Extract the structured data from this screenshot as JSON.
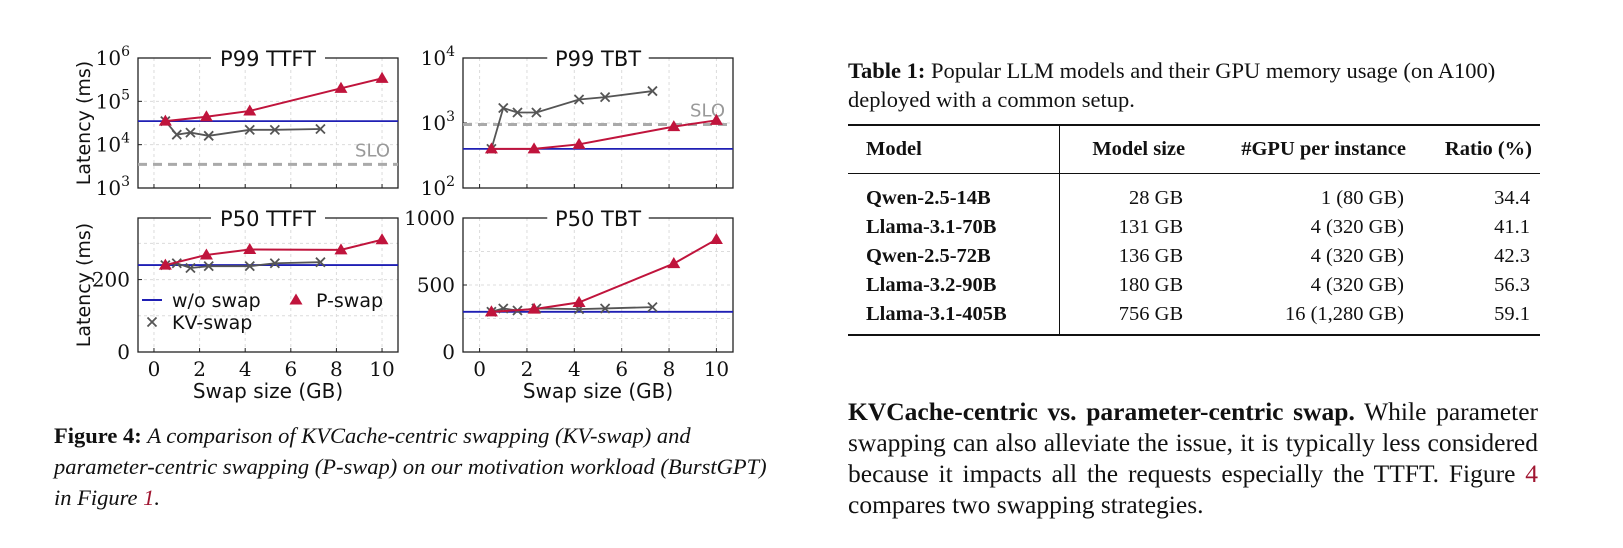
{
  "figure": {
    "chart_data": [
      {
        "type": "line",
        "title": "P99 TTFT",
        "ylabel": "Latency (ms)",
        "yscale": "log",
        "ylim": [
          1000,
          1000000
        ],
        "yticks": [
          1000,
          10000,
          100000,
          1000000
        ],
        "ytick_labels": [
          [
            "10",
            "3"
          ],
          [
            "10",
            "4"
          ],
          [
            "10",
            "5"
          ],
          [
            "10",
            "6"
          ]
        ],
        "xlim": [
          -0.7,
          10.7
        ],
        "xticks": [
          0,
          2,
          4,
          6,
          8,
          10
        ],
        "hlines": [
          {
            "name": "w/o swap",
            "y": 35000,
            "style": "solid",
            "color": "#1f1fb4"
          },
          {
            "name": "SLO",
            "y": 3500,
            "style": "dashed",
            "color": "#aaaaaa",
            "label": "SLO"
          }
        ],
        "series": [
          {
            "name": "KV-swap",
            "marker": "x",
            "color": "#555555",
            "x": [
              0.5,
              1.0,
              1.6,
              2.4,
              4.2,
              5.3,
              7.3
            ],
            "y": [
              35000,
              17000,
              19000,
              16000,
              22000,
              22000,
              23000
            ]
          },
          {
            "name": "P-swap",
            "marker": "triangle",
            "color": "#c0143c",
            "x": [
              0.5,
              2.3,
              4.2,
              8.2,
              10.0
            ],
            "y": [
              35000,
              44000,
              60000,
              200000,
              340000
            ]
          }
        ]
      },
      {
        "type": "line",
        "title": "P99 TBT",
        "ylabel": "",
        "yscale": "log",
        "ylim": [
          100,
          10000
        ],
        "yticks": [
          100,
          1000,
          10000
        ],
        "ytick_labels": [
          [
            "10",
            "2"
          ],
          [
            "10",
            "3"
          ],
          [
            "10",
            "4"
          ]
        ],
        "xlim": [
          -0.7,
          10.7
        ],
        "xticks": [
          0,
          2,
          4,
          6,
          8,
          10
        ],
        "hlines": [
          {
            "name": "w/o swap",
            "y": 400,
            "style": "solid",
            "color": "#1f1fb4"
          },
          {
            "name": "SLO",
            "y": 950,
            "style": "dashed",
            "color": "#aaaaaa",
            "label": "SLO"
          }
        ],
        "series": [
          {
            "name": "KV-swap",
            "marker": "x",
            "color": "#555555",
            "x": [
              0.5,
              1.0,
              1.6,
              2.4,
              4.2,
              5.3,
              7.3
            ],
            "y": [
              400,
              1700,
              1450,
              1450,
              2300,
              2500,
              3100
            ]
          },
          {
            "name": "P-swap",
            "marker": "triangle",
            "color": "#c0143c",
            "x": [
              0.5,
              2.3,
              4.2,
              8.2,
              10.0
            ],
            "y": [
              400,
              400,
              470,
              880,
              1100
            ]
          }
        ]
      },
      {
        "type": "line",
        "title": "P50 TTFT",
        "ylabel": "Latency (ms)",
        "yscale": "linear",
        "ylim": [
          0,
          370
        ],
        "yticks": [
          0,
          200
        ],
        "ytick_labels": [
          [
            "0",
            ""
          ],
          [
            "200",
            ""
          ]
        ],
        "xlim": [
          -0.7,
          10.7
        ],
        "xticks": [
          0,
          2,
          4,
          6,
          8,
          10
        ],
        "xtick_labels": [
          "0",
          "2",
          "4",
          "6",
          "8",
          "10"
        ],
        "xlabel": "Swap size (GB)",
        "hlines": [
          {
            "name": "w/o swap",
            "y": 240,
            "style": "solid",
            "color": "#1f1fb4"
          }
        ],
        "series": [
          {
            "name": "KV-swap",
            "marker": "x",
            "color": "#555555",
            "x": [
              0.5,
              1.0,
              1.6,
              2.4,
              4.2,
              5.3,
              7.3
            ],
            "y": [
              240,
              245,
              232,
              237,
              237,
              245,
              248
            ]
          },
          {
            "name": "P-swap",
            "marker": "triangle",
            "color": "#c0143c",
            "x": [
              0.5,
              2.3,
              4.2,
              8.2,
              10.0
            ],
            "y": [
              240,
              268,
              283,
              282,
              310
            ]
          }
        ],
        "legend": {
          "placement": "lower-left",
          "entries": [
            "w/o swap",
            "P-swap",
            "KV-swap"
          ]
        }
      },
      {
        "type": "line",
        "title": "P50 TBT",
        "ylabel": "",
        "yscale": "linear",
        "ylim": [
          0,
          1000
        ],
        "yticks": [
          0,
          500,
          1000
        ],
        "ytick_labels": [
          [
            "0",
            ""
          ],
          [
            "500",
            ""
          ],
          [
            "1000",
            ""
          ]
        ],
        "xlim": [
          -0.7,
          10.7
        ],
        "xticks": [
          0,
          2,
          4,
          6,
          8,
          10
        ],
        "xtick_labels": [
          "0",
          "2",
          "4",
          "6",
          "8",
          "10"
        ],
        "xlabel": "Swap size (GB)",
        "hlines": [
          {
            "name": "w/o swap",
            "y": 300,
            "style": "solid",
            "color": "#1f1fb4"
          }
        ],
        "series": [
          {
            "name": "KV-swap",
            "marker": "x",
            "color": "#555555",
            "x": [
              0.5,
              1.0,
              1.6,
              2.4,
              4.2,
              5.3,
              7.3
            ],
            "y": [
              300,
              325,
              310,
              325,
              320,
              325,
              335
            ]
          },
          {
            "name": "P-swap",
            "marker": "triangle",
            "color": "#c0143c",
            "x": [
              0.5,
              2.3,
              4.2,
              8.2,
              10.0
            ],
            "y": [
              300,
              320,
              370,
              660,
              840
            ]
          }
        ]
      }
    ],
    "caption_label": "Figure 4:",
    "caption_text": "A comparison of KVCache-centric swapping (KV-swap) and parameter-centric swapping (P-swap) on our motivation workload (BurstGPT) in Figure ",
    "caption_ref": "1",
    "caption_end": "."
  },
  "table": {
    "caption_label": "Table 1:",
    "caption_text": "Popular LLM models and their GPU memory usage (on A100) deployed with a common setup.",
    "headers": [
      "Model",
      "Model size",
      "#GPU per instance",
      "Ratio (%)"
    ],
    "rows": [
      [
        "Qwen-2.5-14B",
        "28 GB",
        "1 (80 GB)",
        "34.4"
      ],
      [
        "Llama-3.1-70B",
        "131 GB",
        "4 (320 GB)",
        "41.1"
      ],
      [
        "Qwen-2.5-72B",
        "136 GB",
        "4 (320 GB)",
        "42.3"
      ],
      [
        "Llama-3.2-90B",
        "180 GB",
        "4 (320 GB)",
        "56.3"
      ],
      [
        "Llama-3.1-405B",
        "756 GB",
        "16 (1,280 GB)",
        "59.1"
      ]
    ]
  },
  "paragraph": {
    "heading": "KVCache-centric vs. parameter-centric swap.",
    "text_1": "While parameter swapping can also alleviate the issue, it is typically less considered because it impacts all the requests especially the TTFT. Figure ",
    "ref": "4",
    "text_2": " compares two swapping strategies."
  },
  "colors": {
    "baseline": "#1f1fb4",
    "kv_swap": "#555555",
    "p_swap": "#c0143c",
    "slo": "#aaaaaa",
    "reference": "#a01530"
  }
}
